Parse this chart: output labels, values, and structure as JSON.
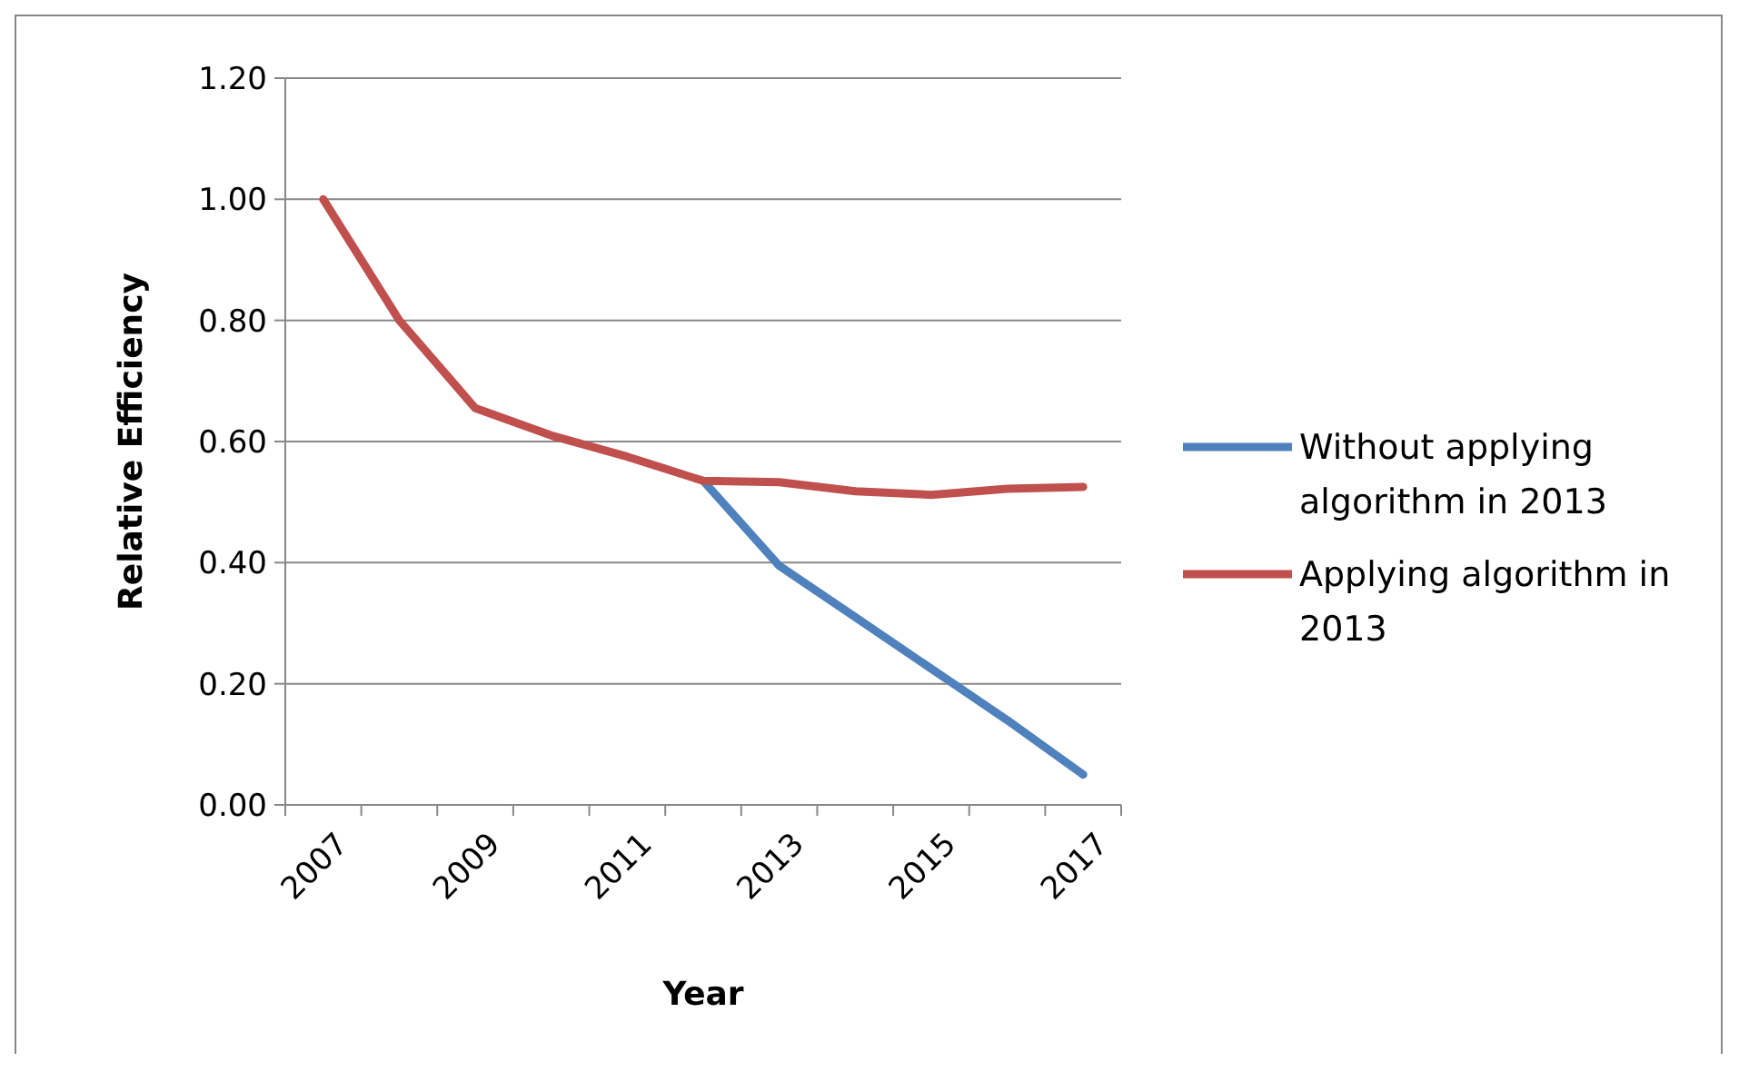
{
  "chart_data": {
    "type": "line",
    "xlabel": "Year",
    "ylabel": "Relative Efficiency",
    "categories": [
      "2007",
      null,
      "2009",
      null,
      "2011",
      null,
      "2013",
      null,
      "2015",
      null,
      "2017"
    ],
    "series": [
      {
        "name": "Without applying algorithm in 2013",
        "color": "#4f81bd",
        "values": [
          null,
          null,
          null,
          null,
          null,
          0.535,
          0.395,
          0.31,
          0.225,
          0.14,
          0.05
        ]
      },
      {
        "name": "Applying algorithm in 2013",
        "color": "#c0504d",
        "values": [
          1.0,
          0.8,
          0.655,
          0.61,
          0.575,
          0.535,
          0.533,
          0.518,
          0.512,
          0.522,
          0.525
        ]
      }
    ],
    "ylim": [
      0,
      1.2
    ],
    "yticks": [
      {
        "value": 0,
        "label": "0.00"
      },
      {
        "value": 0.2,
        "label": "0.20"
      },
      {
        "value": 0.4,
        "label": "0.40"
      },
      {
        "value": 0.6,
        "label": "0.60"
      },
      {
        "value": 0.8,
        "label": "0.80"
      },
      {
        "value": 1.0,
        "label": "1.00"
      },
      {
        "value": 1.2,
        "label": "1.20"
      }
    ],
    "grid": "y",
    "legend": "right",
    "marker": "none",
    "line_style": "solid"
  }
}
